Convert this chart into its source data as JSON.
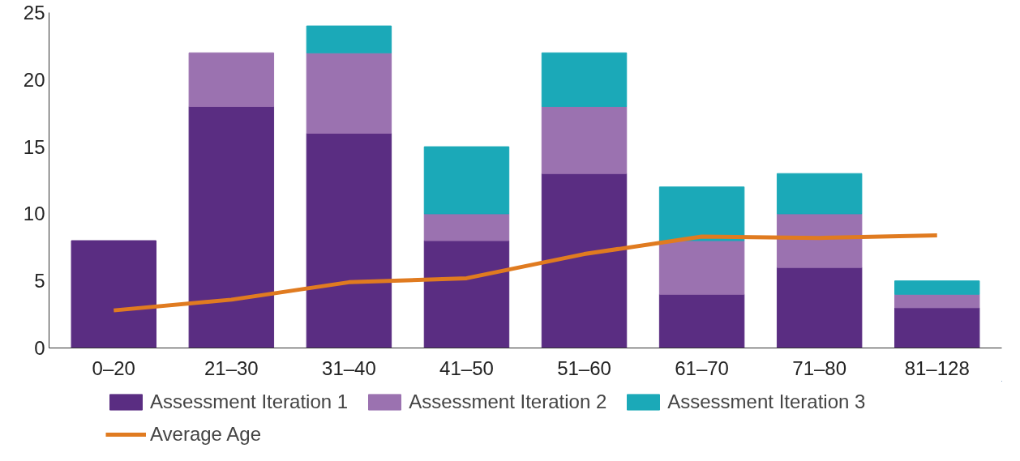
{
  "chart_data": {
    "type": "bar",
    "stacked": true,
    "categories": [
      "0–20",
      "21–30",
      "31–40",
      "41–50",
      "51–60",
      "61–70",
      "71–80",
      "81–128"
    ],
    "series": [
      {
        "name": "Assessment Iteration 1",
        "color": "#5a2d82",
        "values": [
          8,
          18,
          16,
          8,
          13,
          4,
          6,
          3
        ]
      },
      {
        "name": "Assessment Iteration 2",
        "color": "#9b72b0",
        "values": [
          0,
          4,
          6,
          2,
          5,
          4,
          4,
          1
        ]
      },
      {
        "name": "Assessment Iteration 3",
        "color": "#1ba9b8",
        "values": [
          0,
          0,
          2,
          5,
          4,
          4,
          3,
          1
        ]
      },
      {
        "name": "Average Age",
        "type": "line",
        "color": "#e07b20",
        "values": [
          2.8,
          3.6,
          4.9,
          5.2,
          7.0,
          8.3,
          8.2,
          8.4
        ]
      }
    ],
    "ylim": [
      0,
      25
    ],
    "yticks": [
      0,
      5,
      10,
      15,
      20,
      25
    ],
    "grid": false,
    "legend": "bottom",
    "line_style": "solid"
  }
}
